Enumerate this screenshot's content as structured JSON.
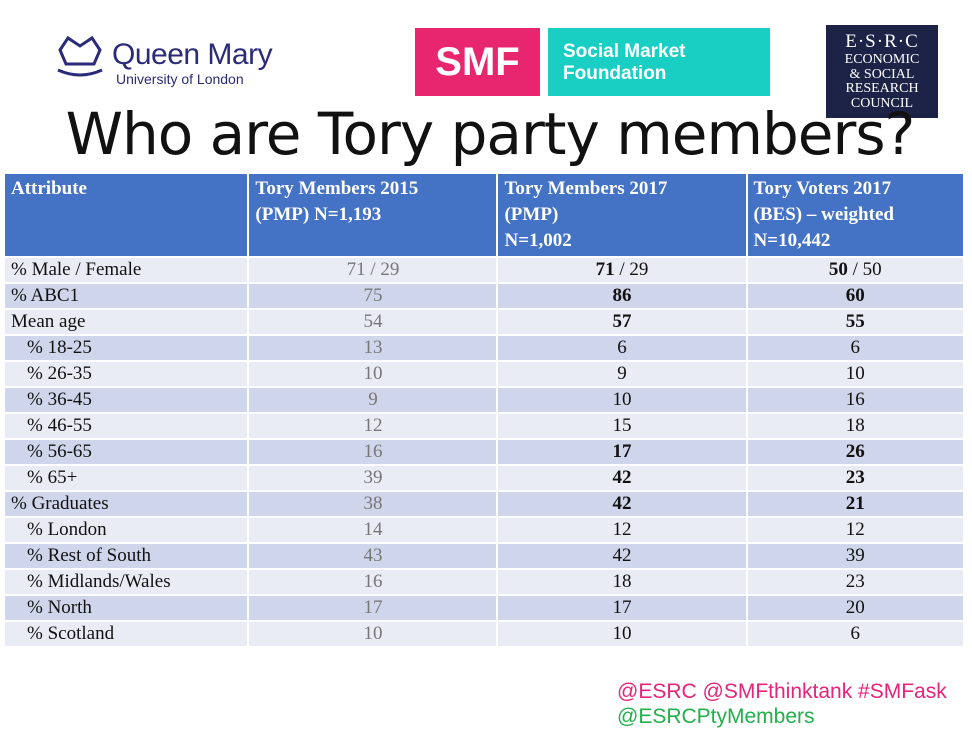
{
  "logos": {
    "qm_name": "Queen Mary",
    "qm_sub": "University of London",
    "smf_short": "SMF",
    "smf_name_1": "Social Market",
    "smf_name_2": "Foundation",
    "esrc_short": "E·S·R·C",
    "esrc_1": "ECONOMIC",
    "esrc_2": "& SOCIAL",
    "esrc_3": "RESEARCH",
    "esrc_4": "COUNCIL"
  },
  "title": "Who are Tory party members?",
  "table": {
    "header": [
      [
        "Attribute"
      ],
      [
        "Tory Members 2015",
        "(PMP) N=1,193"
      ],
      [
        "Tory Members 2017",
        "(PMP)",
        "N=1,002"
      ],
      [
        "Tory Voters 2017",
        "(BES) – weighted",
        "N=10,442"
      ]
    ],
    "rows": [
      [
        "% Male / Female",
        "71 / 29",
        {
          "bold": "71",
          "rest": " / 29"
        },
        {
          "bold": "50",
          "rest": " / 50"
        }
      ],
      [
        "% ABC1",
        75,
        86,
        60
      ],
      [
        "Mean age",
        54,
        57,
        55
      ],
      [
        "% 18-25",
        13,
        6,
        6
      ],
      [
        "% 26-35",
        10,
        9,
        10
      ],
      [
        "% 36-45",
        9,
        10,
        16
      ],
      [
        "% 46-55",
        12,
        15,
        18
      ],
      [
        "% 56-65",
        16,
        17,
        26
      ],
      [
        "% 65+",
        39,
        42,
        23
      ],
      [
        "% Graduates",
        38,
        42,
        21
      ],
      [
        "% London",
        14,
        12,
        12
      ],
      [
        "% Rest of South",
        43,
        42,
        39
      ],
      [
        "% Midlands/Wales",
        16,
        18,
        23
      ],
      [
        "% North",
        17,
        17,
        20
      ],
      [
        "% Scotland",
        10,
        10,
        6
      ]
    ]
  },
  "footer": {
    "line1": "@ESRC @SMFthinktank #SMFask",
    "line2": "@ESRCPtyMembers"
  }
}
